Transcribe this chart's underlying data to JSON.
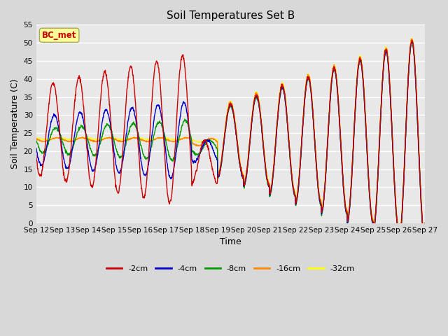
{
  "title": "Soil Temperatures Set B",
  "xlabel": "Time",
  "ylabel": "Soil Temperature (C)",
  "ylim": [
    0,
    55
  ],
  "yticks": [
    0,
    5,
    10,
    15,
    20,
    25,
    30,
    35,
    40,
    45,
    50,
    55
  ],
  "xtick_labels": [
    "Sep 12",
    "Sep 13",
    "Sep 14",
    "Sep 15",
    "Sep 16",
    "Sep 17",
    "Sep 18",
    "Sep 19",
    "Sep 20",
    "Sep 21",
    "Sep 22",
    "Sep 23",
    "Sep 24",
    "Sep 25",
    "Sep 26",
    "Sep 27"
  ],
  "series_colors": [
    "#cc0000",
    "#0000cc",
    "#009900",
    "#ff8800",
    "#ffff00"
  ],
  "series_labels": [
    "-2cm",
    "-4cm",
    "-8cm",
    "-16cm",
    "-32cm"
  ],
  "annotation_text": "BC_met",
  "annotation_color": "#cc0000",
  "annotation_bg": "#ffff99",
  "background_color": "#d8d8d8",
  "plot_bg": "#e8e8e8",
  "grid_color": "#ffffff",
  "title_fontsize": 11,
  "axis_label_fontsize": 9,
  "tick_fontsize": 7.5,
  "legend_fontsize": 8,
  "line_width": 1.0,
  "n_days": 15,
  "pts_per_day": 96
}
